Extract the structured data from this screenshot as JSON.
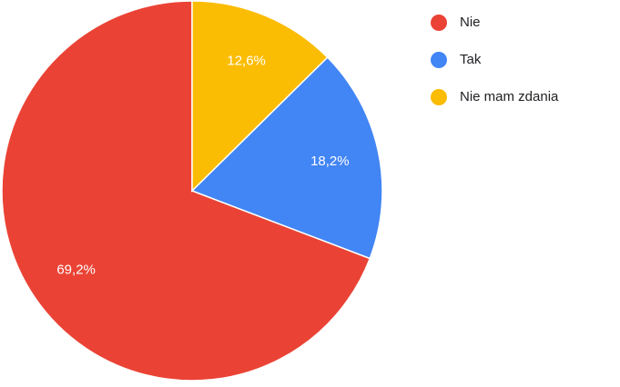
{
  "chart_data": {
    "type": "pie",
    "categories": [
      "Nie",
      "Tak",
      "Nie mam zdania"
    ],
    "values": [
      69.2,
      18.2,
      12.6
    ],
    "value_labels": [
      "69,2%",
      "18,2%",
      "12,6%"
    ],
    "colors": [
      "#ea4335",
      "#4285f4",
      "#fbbc04"
    ],
    "legend": "right"
  }
}
